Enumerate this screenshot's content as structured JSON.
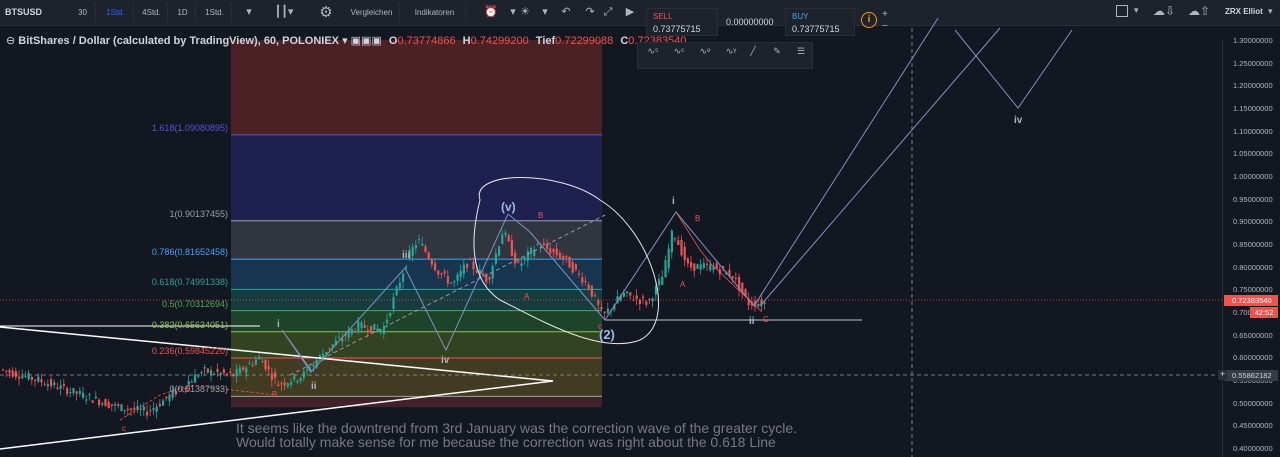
{
  "toolbar": {
    "symbol": "BTSUSD",
    "intervals": [
      "30",
      "1Std.",
      "4Std.",
      "1D",
      "1Std."
    ],
    "active_interval": "1Std.",
    "compare_label": "Vergleichen",
    "indicators_label": "Indikatoren",
    "sell_label": "SELL",
    "sell_price": "0.73775715",
    "spread": "0.00000000",
    "buy_label": "BUY",
    "buy_price": "0.73775715",
    "plus": "+",
    "minus": "−",
    "user": "ZRX Elliot"
  },
  "legend": {
    "title": "BitShares / Dollar (calculated by TradingView), 60, POLONIEX",
    "o_label": "O",
    "o_value": "0.73774866",
    "h_label": "H",
    "h_value": "0.74299200",
    "l_label": "Tief",
    "l_value": "0.72299088",
    "c_label": "C",
    "c_value": "0.72383540"
  },
  "price_axis": {
    "ticks": [
      "1.30000000",
      "1.25000000",
      "1.20000000",
      "1.15000000",
      "1.10000000",
      "1.05000000",
      "1.00000000",
      "0.95000000",
      "0.90000000",
      "0.85000000",
      "0.80000000",
      "0.75000000",
      "0.700",
      "0.65000000",
      "0.60000000",
      "0.55000000",
      "0.50000000",
      "0.45000000",
      "0.40000000"
    ],
    "current_price": "0.72383540",
    "countdown": "42:52",
    "crosshair_price": "0.55862182",
    "crosshair_plus": "+"
  },
  "fib_levels": [
    {
      "label": "1.618(1.09080895)",
      "color": "#5a52d6",
      "price": 1.0908
    },
    {
      "label": "1(0.90137455)",
      "color": "#9aa0ab",
      "price": 0.9014
    },
    {
      "label": "0.786(0.81652458)",
      "color": "#42a5f5",
      "price": 0.8165
    },
    {
      "label": "0.618(0.74991338)",
      "color": "#26a69a",
      "price": 0.7499
    },
    {
      "label": "0.5(0.70312694)",
      "color": "#4caf50",
      "price": 0.7031
    },
    {
      "label": "0.382(0.65634051)",
      "color": "#8bc34a",
      "price": 0.6563
    },
    {
      "label": "0.236(0.59845220)",
      "color": "#ef5350",
      "price": 0.5985
    },
    {
      "label": "0(0.51387933)",
      "color": "#9aa0ab",
      "price": 0.5139
    }
  ],
  "wave_labels": {
    "i1": "i",
    "ii1": "ii",
    "iii1": "iii",
    "iv1": "iv",
    "v1": "(v)",
    "two": "(2)",
    "i2": "i",
    "ii2": "ii",
    "iv2": "iv"
  },
  "small_labels": {
    "c1": "c",
    "d1": "d",
    "b1": "B",
    "bbig": "B",
    "a1": "A",
    "c2": "c",
    "b2": "B",
    "a2": "A",
    "c3": "C"
  },
  "annotation": {
    "line1": "It seems like the downtrend from 3rd January was the correction wave of the greater cycle.",
    "line2": "Would totally make sense for me because the correction was right about the 0.618 Line"
  },
  "colors": {
    "up": "#26a69a",
    "down": "#ef5350",
    "background": "#131722",
    "accent": "#2962ff"
  }
}
